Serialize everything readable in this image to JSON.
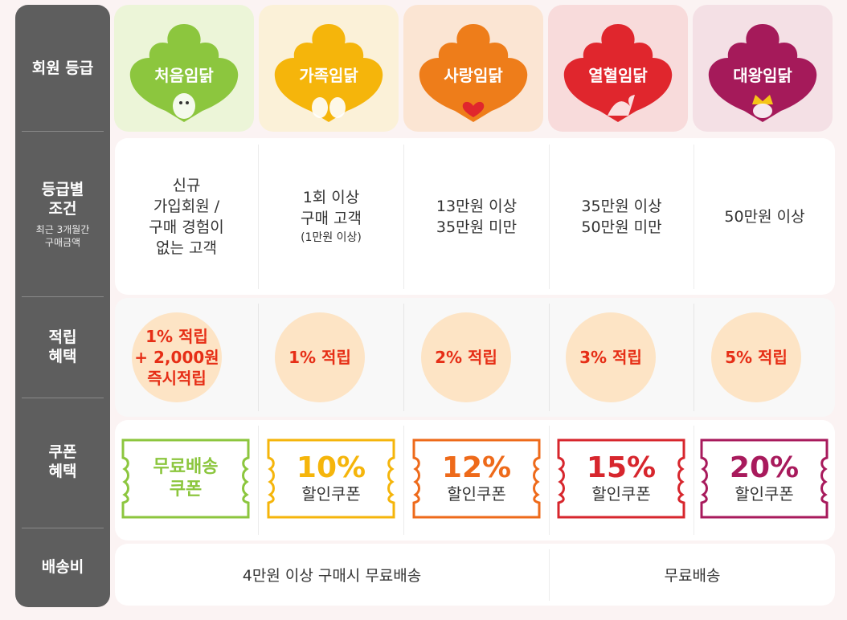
{
  "sidebar": {
    "grade": "회원 등급",
    "condition_1": "등급별",
    "condition_2": "조건",
    "condition_sub_1": "최근 3개월간",
    "condition_sub_2": "구매금액",
    "reward_1": "적립",
    "reward_2": "혜택",
    "coupon_1": "쿠폰",
    "coupon_2": "혜택",
    "shipping": "배송비"
  },
  "grades": [
    {
      "name": "처음임닭",
      "color": "#8cc63e",
      "bg": "#ecf5d8",
      "icon": "chicken-sprout-icon",
      "cond": [
        "신규",
        "가입회원 /",
        "구매 경험이",
        "없는 고객"
      ],
      "cond_small": "",
      "reward": [
        "1% 적립",
        "+ 2,000원",
        "즉시적립"
      ],
      "coupon_top": "무료배송",
      "coupon_bottom": "쿠폰",
      "coupon_color": "#8cc63e"
    },
    {
      "name": "가족임닭",
      "color": "#f5b50b",
      "bg": "#fbf1d8",
      "icon": "chicken-family-icon",
      "cond": [
        "1회 이상",
        "구매 고객"
      ],
      "cond_small": "(1만원 이상)",
      "reward": [
        "1% 적립"
      ],
      "coupon_top": "10%",
      "coupon_bottom": "할인쿠폰",
      "coupon_color": "#f5b50b"
    },
    {
      "name": "사랑임닭",
      "color": "#ee7d1a",
      "bg": "#fbe5d3",
      "icon": "chicken-heart-icon",
      "cond": [
        "13만원 이상",
        "35만원 미만"
      ],
      "cond_small": "",
      "reward": [
        "2% 적립"
      ],
      "coupon_top": "12%",
      "coupon_bottom": "할인쿠폰",
      "coupon_color": "#ee6a1a"
    },
    {
      "name": "열혈임닭",
      "color": "#e0262d",
      "bg": "#f8dbdb",
      "icon": "chicken-fire-icon",
      "cond": [
        "35만원 이상",
        "50만원 미만"
      ],
      "cond_small": "",
      "reward": [
        "3% 적립"
      ],
      "coupon_top": "15%",
      "coupon_bottom": "할인쿠폰",
      "coupon_color": "#d7262d"
    },
    {
      "name": "대왕임닭",
      "color": "#a51a5a",
      "bg": "#f4e0e5",
      "icon": "chicken-king-icon",
      "cond": [
        "50만원 이상"
      ],
      "cond_small": "",
      "reward": [
        "5% 적립"
      ],
      "coupon_top": "20%",
      "coupon_bottom": "할인쿠폰",
      "coupon_color": "#a81a5c"
    }
  ],
  "shipping": {
    "left": "4만원 이상 구매시 무료배송",
    "right": "무료배송"
  },
  "colors": {
    "sidebar": "#5e5e5e",
    "reward_text": "#e62e16",
    "reward_circle": "#fde4c5"
  }
}
